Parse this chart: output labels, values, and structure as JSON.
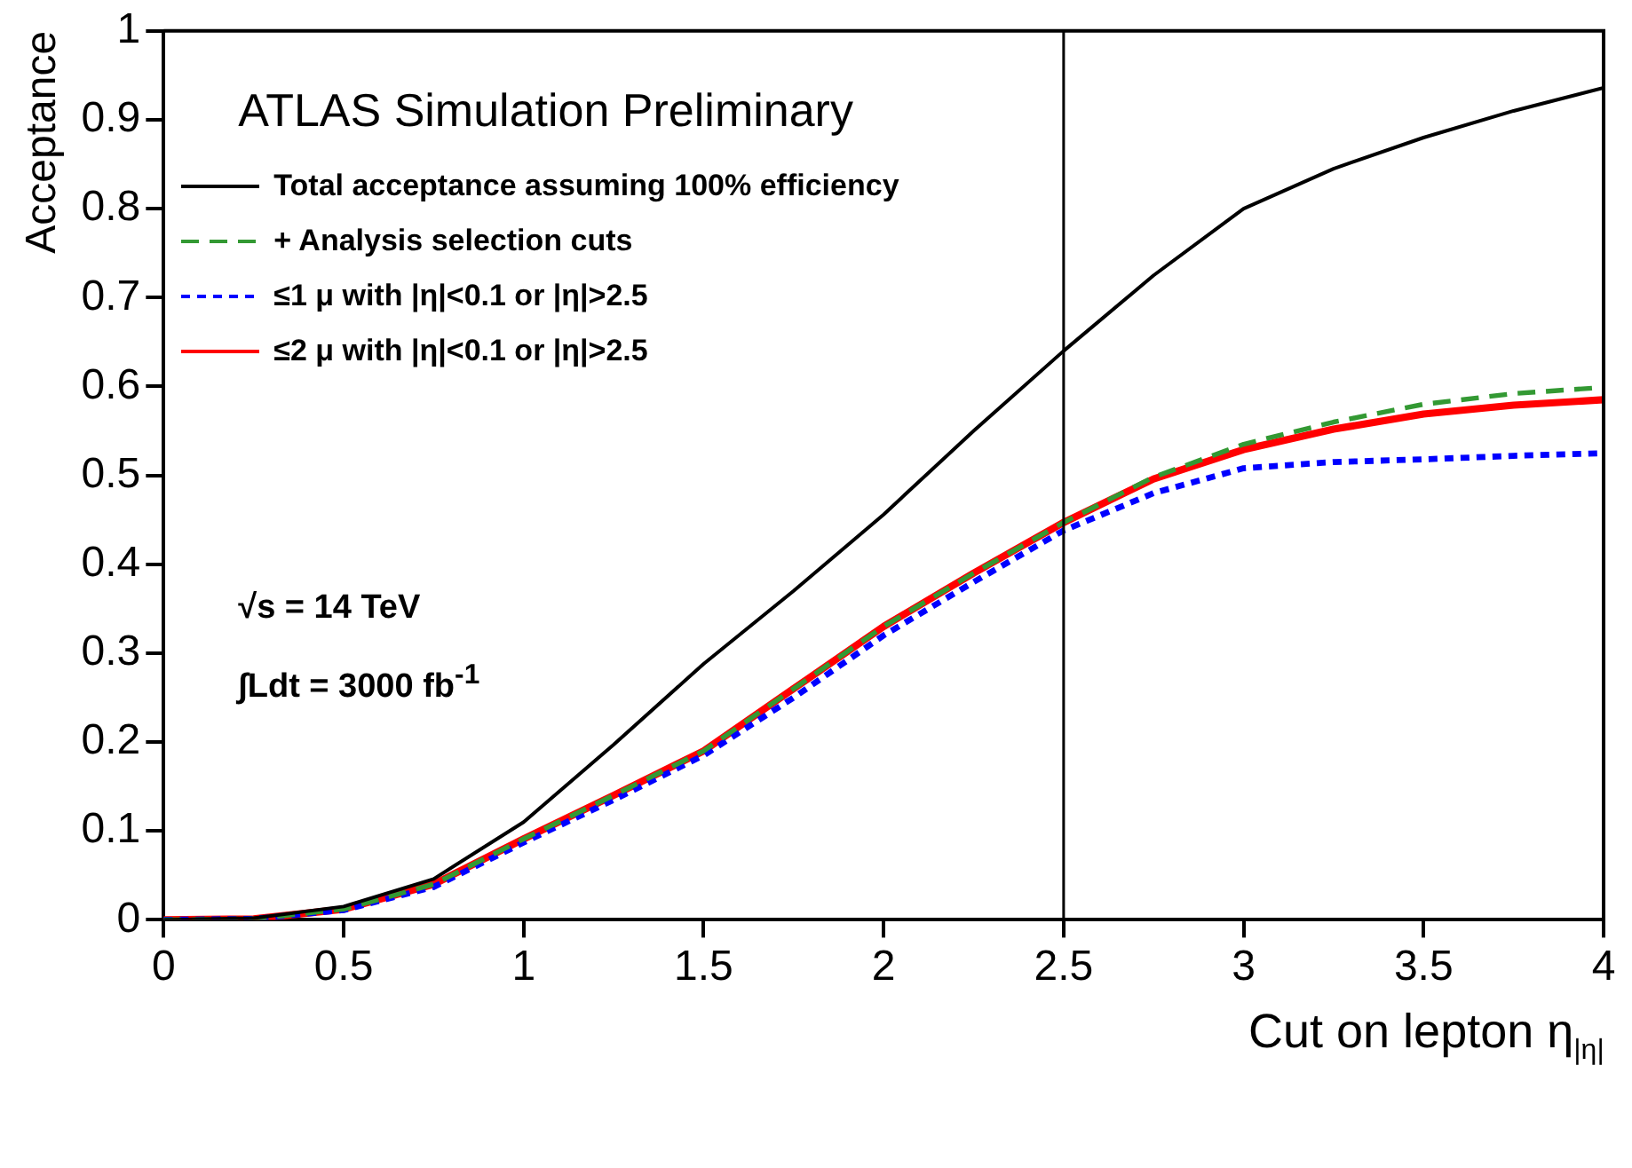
{
  "chart_data": {
    "type": "line",
    "xlabel": "Cut on lepton η$_{|η|}$",
    "ylabel": "Acceptance",
    "x": [
      0,
      0.25,
      0.5,
      0.75,
      1,
      1.25,
      1.5,
      1.75,
      2,
      2.25,
      2.5,
      2.75,
      3,
      3.25,
      3.5,
      3.75,
      4
    ],
    "series": [
      {
        "name": "Total acceptance assuming 100% efficiency",
        "color": "#000000",
        "line_style": "solid",
        "values": [
          0,
          0.002,
          0.015,
          0.046,
          0.11,
          0.197,
          0.288,
          0.37,
          0.456,
          0.55,
          0.64,
          0.725,
          0.8,
          0.845,
          0.88,
          0.91,
          0.936
        ]
      },
      {
        "name": "+ Analysis selection cuts",
        "color": "#339933",
        "line_style": "dashed",
        "values": [
          0,
          0.001,
          0.012,
          0.04,
          0.091,
          0.14,
          0.19,
          0.26,
          0.33,
          0.39,
          0.447,
          0.498,
          0.535,
          0.56,
          0.58,
          0.592,
          0.599
        ]
      },
      {
        "name": "≤1 μ with |η|<0.1 or |η|>2.5",
        "color": "#0000ff",
        "line_style": "dotted",
        "values": [
          0,
          0.001,
          0.011,
          0.037,
          0.087,
          0.135,
          0.185,
          0.25,
          0.32,
          0.38,
          0.438,
          0.48,
          0.508,
          0.515,
          0.518,
          0.522,
          0.525
        ]
      },
      {
        "name": "≤2 μ with |η|<0.1 or |η|>2.5",
        "color": "#ff0000",
        "line_style": "solid",
        "values": [
          0,
          0.001,
          0.012,
          0.04,
          0.091,
          0.14,
          0.19,
          0.26,
          0.33,
          0.39,
          0.447,
          0.496,
          0.529,
          0.552,
          0.569,
          0.579,
          0.585
        ]
      }
    ],
    "xlim": [
      0,
      4
    ],
    "xticks": [
      0,
      0.5,
      1,
      1.5,
      2,
      2.5,
      3,
      3.5,
      4
    ],
    "ylim": [
      0,
      1
    ],
    "yticks": [
      0,
      0.1,
      0.2,
      0.3,
      0.4,
      0.5,
      0.6,
      0.7,
      0.8,
      0.9,
      1
    ],
    "ref_lines": [
      {
        "axis": "x",
        "value": 2.5,
        "color": "#000000"
      }
    ],
    "annotations": [
      "ATLAS Simulation Preliminary",
      "√s = 14 TeV",
      "∫Ldt = 3000 fb$^{-1}$"
    ],
    "legend": "top left",
    "grid": false,
    "marker": "none"
  }
}
